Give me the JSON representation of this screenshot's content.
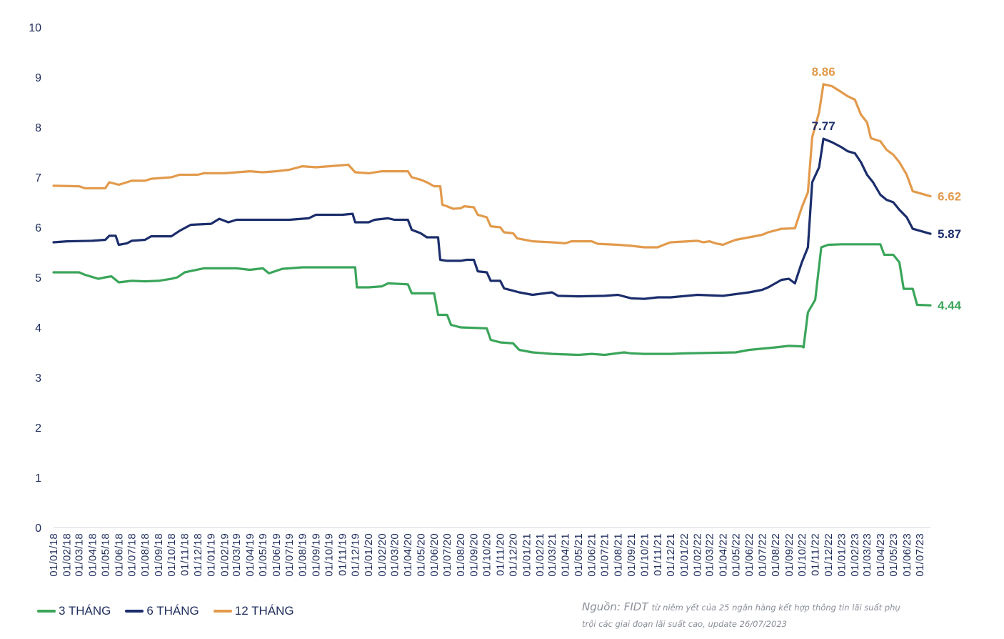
{
  "chart_data": {
    "type": "line",
    "title": "",
    "xlabel": "",
    "ylabel": "",
    "ylim": [
      0,
      10
    ],
    "yticks": [
      "0",
      "1",
      "2",
      "3",
      "4",
      "5",
      "6",
      "7",
      "8",
      "9",
      "10"
    ],
    "xticks": [
      "01/01/18",
      "01/02/18",
      "01/03/18",
      "01/04/18",
      "01/05/18",
      "01/06/18",
      "01/07/18",
      "01/08/18",
      "01/09/18",
      "01/10/18",
      "01/11/18",
      "01/12/18",
      "01/01/19",
      "01/02/19",
      "01/03/19",
      "01/04/19",
      "01/05/19",
      "01/06/19",
      "01/07/19",
      "01/08/19",
      "01/09/19",
      "01/10/19",
      "01/11/19",
      "01/12/19",
      "01/01/20",
      "01/02/20",
      "01/03/20",
      "01/04/20",
      "01/05/20",
      "01/06/20",
      "01/07/20",
      "01/08/20",
      "01/09/20",
      "01/10/20",
      "01/11/20",
      "01/12/20",
      "01/01/21",
      "01/02/21",
      "01/03/21",
      "01/04/21",
      "01/05/21",
      "01/06/21",
      "01/07/21",
      "01/08/21",
      "01/09/21",
      "01/10/21",
      "01/11/21",
      "01/12/21",
      "01/01/22",
      "01/02/22",
      "01/03/22",
      "01/04/22",
      "01/05/22",
      "01/06/22",
      "01/07/22",
      "01/08/22",
      "01/09/22",
      "01/10/22",
      "01/11/22",
      "01/12/22",
      "01/01/23",
      "01/02/23",
      "01/03/23",
      "01/04/23",
      "01/05/23",
      "01/06/23",
      "01/07/23"
    ],
    "x_first": "01/01/18",
    "x_last": "26/07/23",
    "grid": false,
    "legend_position": "bottom-left",
    "series": [
      {
        "name": "3 THÁNG",
        "color": "#3aa55a",
        "end_label": "4.44",
        "points": [
          [
            "01/01/18",
            5.1
          ],
          [
            "01/03/18",
            5.1
          ],
          [
            "15/03/18",
            5.05
          ],
          [
            "15/04/18",
            4.97
          ],
          [
            "01/05/18",
            5.0
          ],
          [
            "15/05/18",
            5.02
          ],
          [
            "01/06/18",
            4.9
          ],
          [
            "01/07/18",
            4.93
          ],
          [
            "01/08/18",
            4.92
          ],
          [
            "01/09/18",
            4.93
          ],
          [
            "01/10/18",
            4.97
          ],
          [
            "15/10/18",
            5.0
          ],
          [
            "01/11/18",
            5.1
          ],
          [
            "15/12/18",
            5.18
          ],
          [
            "01/02/19",
            5.18
          ],
          [
            "01/03/19",
            5.18
          ],
          [
            "01/04/19",
            5.15
          ],
          [
            "01/05/19",
            5.18
          ],
          [
            "15/05/19",
            5.08
          ],
          [
            "15/06/19",
            5.17
          ],
          [
            "01/08/19",
            5.2
          ],
          [
            "01/09/19",
            5.2
          ],
          [
            "01/11/19",
            5.2
          ],
          [
            "01/12/19",
            5.2
          ],
          [
            "05/12/19",
            4.8
          ],
          [
            "01/01/20",
            4.8
          ],
          [
            "01/02/20",
            4.82
          ],
          [
            "15/02/20",
            4.88
          ],
          [
            "01/04/20",
            4.86
          ],
          [
            "10/04/20",
            4.68
          ],
          [
            "01/05/20",
            4.68
          ],
          [
            "01/06/20",
            4.68
          ],
          [
            "10/06/20",
            4.25
          ],
          [
            "01/07/20",
            4.25
          ],
          [
            "10/07/20",
            4.05
          ],
          [
            "01/08/20",
            4.0
          ],
          [
            "01/10/20",
            3.98
          ],
          [
            "10/10/20",
            3.75
          ],
          [
            "01/11/20",
            3.7
          ],
          [
            "01/12/20",
            3.68
          ],
          [
            "15/12/20",
            3.55
          ],
          [
            "15/01/21",
            3.5
          ],
          [
            "01/03/21",
            3.47
          ],
          [
            "01/05/21",
            3.45
          ],
          [
            "01/06/21",
            3.47
          ],
          [
            "01/07/21",
            3.45
          ],
          [
            "15/08/21",
            3.5
          ],
          [
            "01/09/21",
            3.48
          ],
          [
            "01/10/21",
            3.47
          ],
          [
            "01/12/21",
            3.47
          ],
          [
            "01/01/22",
            3.48
          ],
          [
            "01/05/22",
            3.5
          ],
          [
            "01/06/22",
            3.55
          ],
          [
            "01/08/22",
            3.6
          ],
          [
            "01/09/22",
            3.63
          ],
          [
            "01/10/22",
            3.62
          ],
          [
            "05/10/22",
            3.6
          ],
          [
            "15/10/22",
            4.3
          ],
          [
            "01/11/22",
            4.55
          ],
          [
            "15/11/22",
            5.6
          ],
          [
            "01/12/22",
            5.65
          ],
          [
            "01/01/23",
            5.66
          ],
          [
            "01/02/23",
            5.66
          ],
          [
            "01/03/23",
            5.66
          ],
          [
            "01/04/23",
            5.66
          ],
          [
            "10/04/23",
            5.45
          ],
          [
            "01/05/23",
            5.45
          ],
          [
            "15/05/23",
            5.3
          ],
          [
            "25/05/23",
            4.77
          ],
          [
            "15/06/23",
            4.77
          ],
          [
            "25/06/23",
            4.45
          ],
          [
            "26/07/23",
            4.44
          ]
        ]
      },
      {
        "name": "6 THÁNG",
        "color": "#1b2d6b",
        "end_label": "5.87",
        "points": [
          [
            "01/01/18",
            5.7
          ],
          [
            "01/02/18",
            5.72
          ],
          [
            "01/04/18",
            5.73
          ],
          [
            "01/05/18",
            5.75
          ],
          [
            "10/05/18",
            5.83
          ],
          [
            "25/05/18",
            5.83
          ],
          [
            "01/06/18",
            5.65
          ],
          [
            "20/06/18",
            5.68
          ],
          [
            "01/07/18",
            5.73
          ],
          [
            "01/08/18",
            5.75
          ],
          [
            "15/08/18",
            5.82
          ],
          [
            "01/10/18",
            5.82
          ],
          [
            "20/10/18",
            5.93
          ],
          [
            "15/11/18",
            6.05
          ],
          [
            "01/01/19",
            6.07
          ],
          [
            "20/01/19",
            6.17
          ],
          [
            "10/02/19",
            6.1
          ],
          [
            "01/03/19",
            6.15
          ],
          [
            "01/05/19",
            6.15
          ],
          [
            "01/07/19",
            6.15
          ],
          [
            "15/08/19",
            6.18
          ],
          [
            "01/09/19",
            6.25
          ],
          [
            "01/11/19",
            6.25
          ],
          [
            "25/11/19",
            6.27
          ],
          [
            "01/12/19",
            6.1
          ],
          [
            "01/01/20",
            6.1
          ],
          [
            "15/01/20",
            6.15
          ],
          [
            "15/02/20",
            6.18
          ],
          [
            "01/03/20",
            6.15
          ],
          [
            "01/04/20",
            6.15
          ],
          [
            "10/04/20",
            5.95
          ],
          [
            "01/05/20",
            5.88
          ],
          [
            "15/05/20",
            5.8
          ],
          [
            "10/06/20",
            5.8
          ],
          [
            "15/06/20",
            5.35
          ],
          [
            "01/07/20",
            5.33
          ],
          [
            "01/08/20",
            5.33
          ],
          [
            "15/08/20",
            5.35
          ],
          [
            "01/09/20",
            5.35
          ],
          [
            "10/09/20",
            5.12
          ],
          [
            "01/10/20",
            5.1
          ],
          [
            "10/10/20",
            4.93
          ],
          [
            "01/11/20",
            4.93
          ],
          [
            "10/11/20",
            4.78
          ],
          [
            "15/12/20",
            4.7
          ],
          [
            "15/01/21",
            4.65
          ],
          [
            "01/03/21",
            4.7
          ],
          [
            "15/03/21",
            4.63
          ],
          [
            "01/05/21",
            4.62
          ],
          [
            "01/07/21",
            4.63
          ],
          [
            "01/08/21",
            4.65
          ],
          [
            "01/09/21",
            4.58
          ],
          [
            "01/10/21",
            4.57
          ],
          [
            "01/11/21",
            4.6
          ],
          [
            "01/12/21",
            4.6
          ],
          [
            "01/02/22",
            4.65
          ],
          [
            "01/04/22",
            4.63
          ],
          [
            "01/06/22",
            4.7
          ],
          [
            "01/07/22",
            4.75
          ],
          [
            "15/07/22",
            4.8
          ],
          [
            "15/08/22",
            4.95
          ],
          [
            "01/09/22",
            4.97
          ],
          [
            "15/09/22",
            4.88
          ],
          [
            "01/10/22",
            5.3
          ],
          [
            "15/10/22",
            5.6
          ],
          [
            "25/10/22",
            6.9
          ],
          [
            "10/11/22",
            7.2
          ],
          [
            "20/11/22",
            7.77
          ],
          [
            "10/12/22",
            7.7
          ],
          [
            "01/01/23",
            7.6
          ],
          [
            "15/01/23",
            7.52
          ],
          [
            "01/02/23",
            7.48
          ],
          [
            "15/02/23",
            7.3
          ],
          [
            "01/03/23",
            7.05
          ],
          [
            "15/03/23",
            6.9
          ],
          [
            "01/04/23",
            6.65
          ],
          [
            "15/04/23",
            6.55
          ],
          [
            "01/05/23",
            6.5
          ],
          [
            "15/05/23",
            6.35
          ],
          [
            "01/06/23",
            6.2
          ],
          [
            "15/06/23",
            5.97
          ],
          [
            "26/07/23",
            5.87
          ]
        ]
      },
      {
        "name": "12 THÁNG",
        "color": "#e29a4c",
        "end_label": "6.62",
        "points": [
          [
            "01/01/18",
            6.83
          ],
          [
            "01/03/18",
            6.82
          ],
          [
            "15/03/18",
            6.78
          ],
          [
            "01/05/18",
            6.78
          ],
          [
            "10/05/18",
            6.9
          ],
          [
            "01/06/18",
            6.85
          ],
          [
            "01/07/18",
            6.93
          ],
          [
            "01/08/18",
            6.93
          ],
          [
            "15/08/18",
            6.97
          ],
          [
            "01/10/18",
            7.0
          ],
          [
            "20/10/18",
            7.05
          ],
          [
            "01/12/18",
            7.05
          ],
          [
            "15/12/18",
            7.08
          ],
          [
            "01/02/19",
            7.08
          ],
          [
            "01/04/19",
            7.12
          ],
          [
            "01/05/19",
            7.1
          ],
          [
            "01/06/19",
            7.12
          ],
          [
            "01/07/19",
            7.15
          ],
          [
            "01/08/19",
            7.22
          ],
          [
            "01/09/19",
            7.2
          ],
          [
            "01/10/19",
            7.22
          ],
          [
            "15/11/19",
            7.25
          ],
          [
            "01/12/19",
            7.1
          ],
          [
            "01/01/20",
            7.08
          ],
          [
            "01/02/20",
            7.12
          ],
          [
            "01/04/20",
            7.12
          ],
          [
            "10/04/20",
            7.0
          ],
          [
            "01/05/20",
            6.95
          ],
          [
            "15/05/20",
            6.9
          ],
          [
            "01/06/20",
            6.82
          ],
          [
            "15/06/20",
            6.82
          ],
          [
            "20/06/20",
            6.45
          ],
          [
            "01/07/20",
            6.42
          ],
          [
            "15/07/20",
            6.37
          ],
          [
            "01/08/20",
            6.38
          ],
          [
            "10/08/20",
            6.42
          ],
          [
            "01/09/20",
            6.4
          ],
          [
            "10/09/20",
            6.25
          ],
          [
            "01/10/20",
            6.2
          ],
          [
            "10/10/20",
            6.02
          ],
          [
            "01/11/20",
            6.0
          ],
          [
            "10/11/20",
            5.9
          ],
          [
            "01/12/20",
            5.88
          ],
          [
            "10/12/20",
            5.78
          ],
          [
            "15/01/21",
            5.72
          ],
          [
            "01/03/21",
            5.7
          ],
          [
            "01/04/21",
            5.68
          ],
          [
            "15/04/21",
            5.72
          ],
          [
            "01/06/21",
            5.72
          ],
          [
            "15/06/21",
            5.67
          ],
          [
            "01/08/21",
            5.65
          ],
          [
            "01/09/21",
            5.63
          ],
          [
            "01/10/21",
            5.6
          ],
          [
            "01/11/21",
            5.6
          ],
          [
            "15/11/21",
            5.65
          ],
          [
            "01/12/21",
            5.7
          ],
          [
            "01/02/22",
            5.73
          ],
          [
            "15/02/22",
            5.7
          ],
          [
            "01/03/22",
            5.72
          ],
          [
            "15/03/22",
            5.68
          ],
          [
            "01/04/22",
            5.65
          ],
          [
            "15/04/22",
            5.7
          ],
          [
            "01/05/22",
            5.75
          ],
          [
            "01/06/22",
            5.8
          ],
          [
            "01/07/22",
            5.85
          ],
          [
            "15/07/22",
            5.9
          ],
          [
            "15/08/22",
            5.97
          ],
          [
            "15/09/22",
            5.98
          ],
          [
            "01/10/22",
            6.4
          ],
          [
            "15/10/22",
            6.7
          ],
          [
            "25/10/22",
            7.8
          ],
          [
            "10/11/22",
            8.3
          ],
          [
            "20/11/22",
            8.86
          ],
          [
            "10/12/22",
            8.82
          ],
          [
            "01/01/23",
            8.7
          ],
          [
            "15/01/23",
            8.62
          ],
          [
            "01/02/23",
            8.55
          ],
          [
            "15/02/23",
            8.25
          ],
          [
            "01/03/23",
            8.1
          ],
          [
            "10/03/23",
            7.78
          ],
          [
            "01/04/23",
            7.72
          ],
          [
            "15/04/23",
            7.55
          ],
          [
            "01/05/23",
            7.45
          ],
          [
            "15/05/23",
            7.3
          ],
          [
            "01/06/23",
            7.05
          ],
          [
            "15/06/23",
            6.72
          ],
          [
            "26/07/23",
            6.62
          ]
        ]
      }
    ],
    "annotations": [
      {
        "text": "8.86",
        "series": "12 THÁNG",
        "date": "20/11/22",
        "value": 8.86
      },
      {
        "text": "7.77",
        "series": "6 THÁNG",
        "date": "20/11/22",
        "value": 7.77
      }
    ]
  },
  "source": {
    "lead": "Nguồn:  FIDT",
    "detail_line1": "từ niêm yết của 25 ngân hàng kết hợp thông tin lãi suất phụ",
    "detail_line2": "trội các giai đoạn lãi suất cao, update 26/07/2023"
  }
}
